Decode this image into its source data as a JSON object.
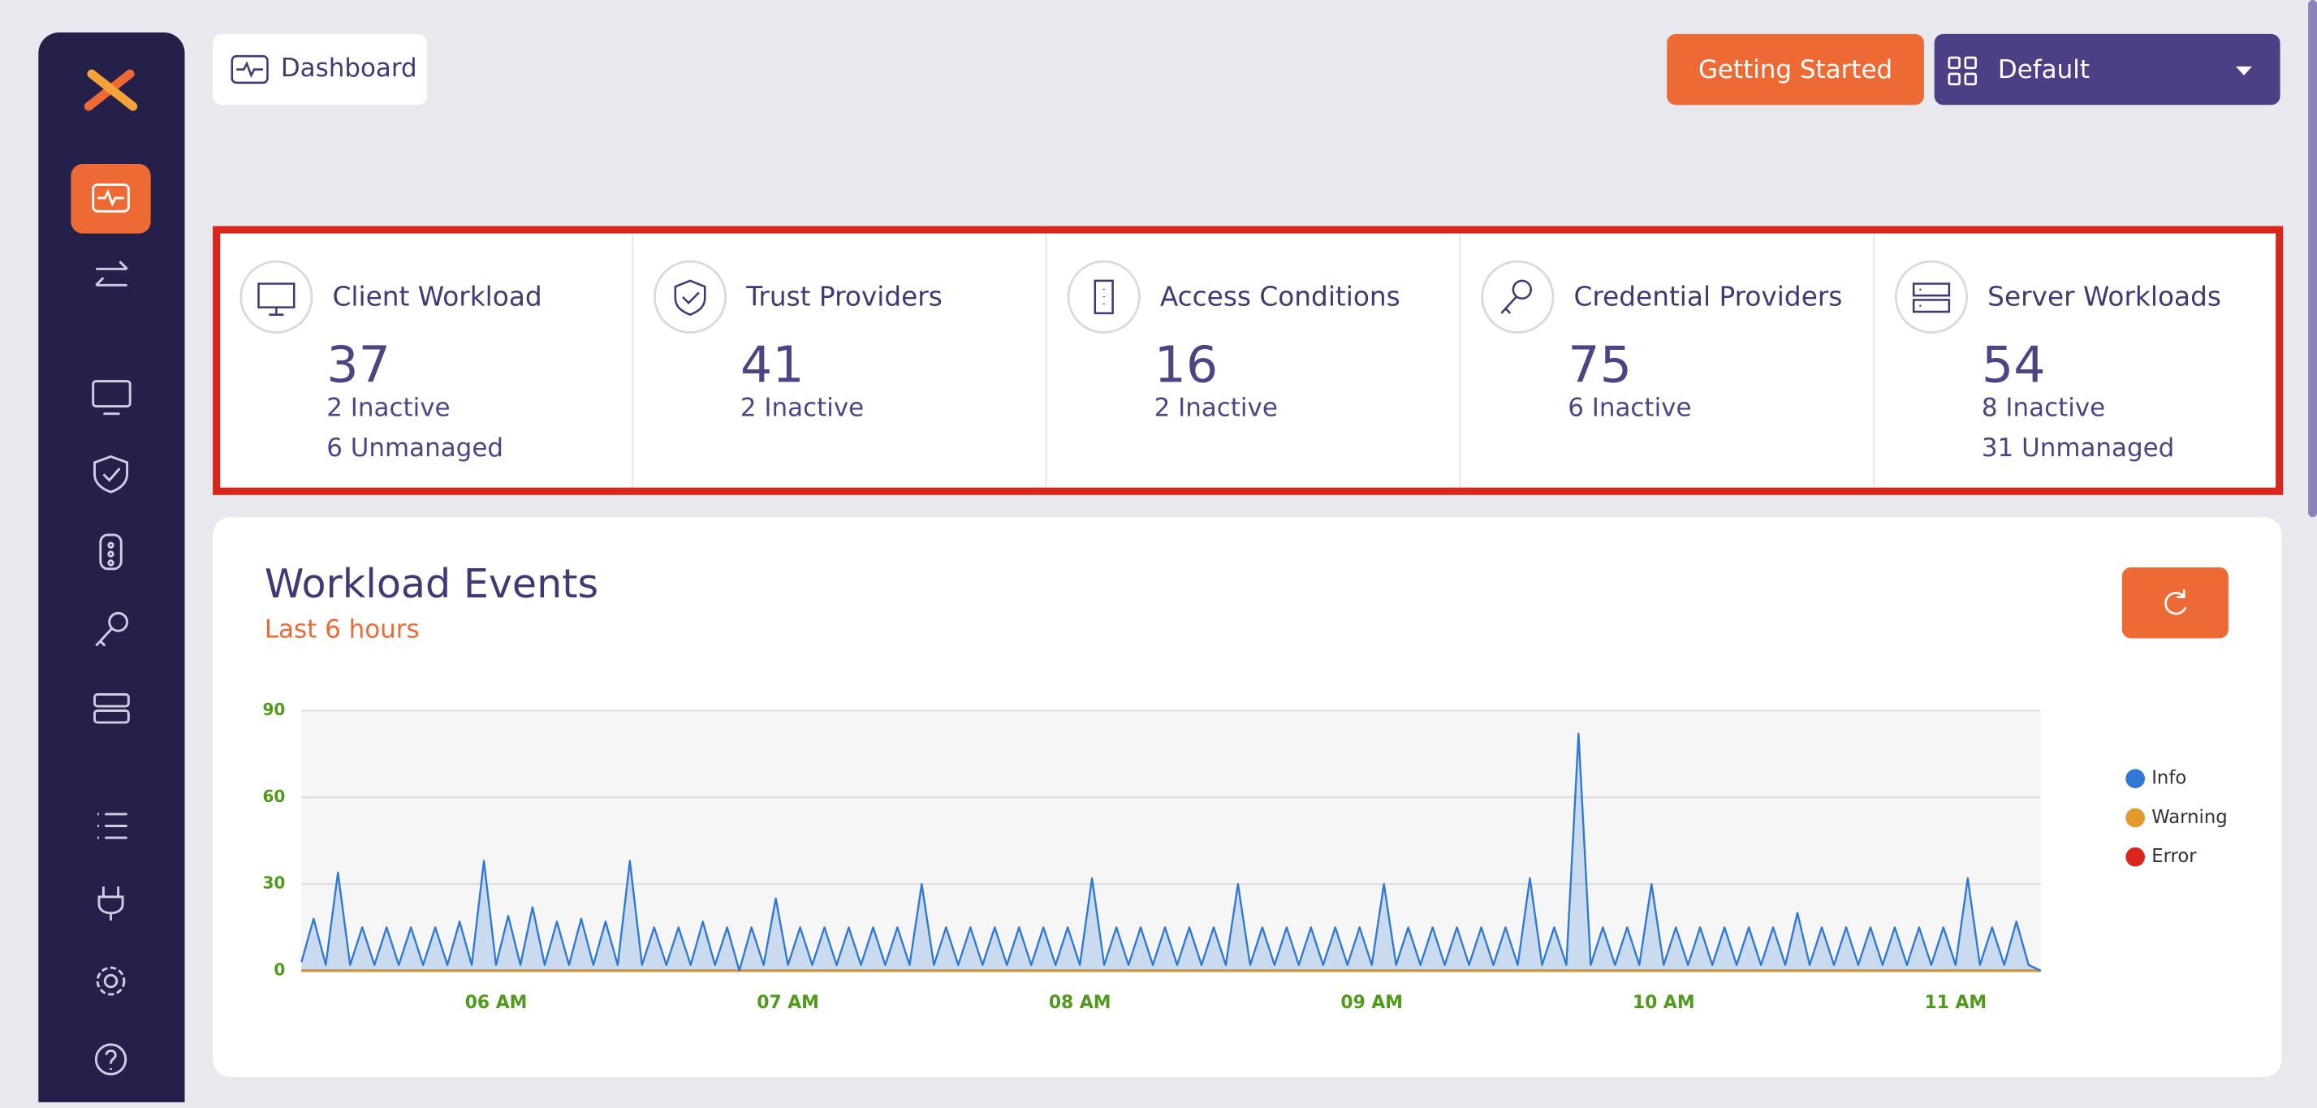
{
  "header": {
    "breadcrumb": "Dashboard",
    "getting_started": "Getting Started",
    "workspace": "Default"
  },
  "summary_cards": [
    {
      "title": "Client Workload",
      "count": 37,
      "details": [
        "2 Inactive",
        "6 Unmanaged"
      ]
    },
    {
      "title": "Trust Providers",
      "count": 41,
      "details": [
        "2 Inactive"
      ]
    },
    {
      "title": "Access Conditions",
      "count": 16,
      "details": [
        "2 Inactive"
      ]
    },
    {
      "title": "Credential Providers",
      "count": 75,
      "details": [
        "6 Inactive"
      ]
    },
    {
      "title": "Server Workloads",
      "count": 54,
      "details": [
        "8 Inactive",
        "31 Unmanaged"
      ]
    }
  ],
  "events_panel": {
    "title": "Workload Events",
    "subtitle": "Last 6 hours"
  },
  "chart_data": {
    "type": "line",
    "categories": [
      null,
      null,
      null,
      null,
      null,
      null,
      null,
      null,
      null,
      null,
      null,
      null,
      null,
      null,
      null,
      null,
      "06 AM",
      null,
      null,
      null,
      null,
      null,
      null,
      null,
      null,
      null,
      null,
      null,
      null,
      null,
      null,
      null,
      null,
      null,
      null,
      null,
      null,
      null,
      null,
      null,
      "07 AM",
      null,
      null,
      null,
      null,
      null,
      null,
      null,
      null,
      null,
      null,
      null,
      null,
      null,
      null,
      null,
      null,
      null,
      null,
      null,
      null,
      null,
      null,
      null,
      "08 AM",
      null,
      null,
      null,
      null,
      null,
      null,
      null,
      null,
      null,
      null,
      null,
      null,
      null,
      null,
      null,
      null,
      null,
      null,
      null,
      null,
      null,
      null,
      null,
      "09 AM",
      null,
      null,
      null,
      null,
      null,
      null,
      null,
      null,
      null,
      null,
      null,
      null,
      null,
      null,
      null,
      null,
      null,
      null,
      null,
      null,
      null,
      null,
      null,
      "10 AM",
      null,
      null,
      null,
      null,
      null,
      null,
      null,
      null,
      null,
      null,
      null,
      null,
      null,
      null,
      null,
      null,
      null,
      null,
      null,
      null,
      null,
      null,
      null,
      "11 AM",
      null,
      null,
      null,
      null,
      null,
      null,
      null
    ],
    "series": [
      {
        "name": "Info",
        "color": "#2f78d4",
        "values": [
          3,
          18,
          2,
          34,
          2,
          15,
          2,
          15,
          2,
          15,
          2,
          15,
          2,
          17,
          2,
          38,
          2,
          19,
          2,
          22,
          2,
          17,
          2,
          18,
          2,
          17,
          2,
          38,
          2,
          15,
          2,
          15,
          2,
          17,
          2,
          15,
          0,
          15,
          2,
          25,
          2,
          15,
          2,
          15,
          2,
          15,
          2,
          15,
          2,
          15,
          2,
          30,
          2,
          15,
          2,
          15,
          2,
          15,
          2,
          15,
          2,
          15,
          2,
          15,
          2,
          32,
          2,
          15,
          2,
          15,
          2,
          15,
          2,
          15,
          2,
          15,
          2,
          30,
          2,
          15,
          2,
          15,
          2,
          15,
          2,
          15,
          2,
          15,
          2,
          30,
          2,
          15,
          2,
          15,
          2,
          15,
          2,
          15,
          2,
          15,
          2,
          32,
          2,
          15,
          2,
          82,
          2,
          15,
          2,
          15,
          2,
          30,
          2,
          15,
          2,
          15,
          2,
          15,
          2,
          15,
          2,
          15,
          2,
          20,
          2,
          15,
          2,
          15,
          2,
          15,
          2,
          15,
          2,
          15,
          2,
          15,
          2,
          32,
          2,
          15,
          2,
          17,
          2,
          0
        ]
      },
      {
        "name": "Warning",
        "color": "#e39a2d",
        "values": [
          0,
          0,
          0,
          0,
          0,
          0,
          0,
          0,
          0,
          0,
          0,
          0,
          0,
          0,
          0,
          0,
          0,
          0,
          0,
          0,
          0,
          0,
          0,
          0,
          0,
          0,
          0,
          0,
          0,
          0,
          0,
          0,
          0,
          0,
          0,
          0,
          0,
          0,
          0,
          0,
          0,
          0,
          0,
          0,
          0,
          0,
          0,
          0,
          0,
          0,
          0,
          0,
          0,
          0,
          0,
          0,
          0,
          0,
          0,
          0,
          0,
          0,
          0,
          0,
          0,
          0,
          0,
          0,
          0,
          0,
          0,
          0,
          0,
          0,
          0,
          0,
          0,
          0,
          0,
          0,
          0,
          0,
          0,
          0,
          0,
          0,
          0,
          0,
          0,
          0,
          0,
          0,
          0,
          0,
          0,
          0,
          0,
          0,
          0,
          0,
          0,
          0,
          0,
          0,
          0,
          0,
          0,
          0,
          0,
          0,
          0,
          0,
          0,
          0,
          0,
          0,
          0,
          0,
          0,
          0,
          0,
          0,
          0,
          0,
          0,
          0,
          0,
          0,
          0,
          0,
          0,
          0,
          0,
          0,
          0,
          0,
          0,
          0,
          0,
          0,
          0,
          0,
          0,
          0
        ]
      },
      {
        "name": "Error",
        "color": "#d9261c",
        "values": [
          0,
          0,
          0,
          0,
          0,
          0,
          0,
          0,
          0,
          0,
          0,
          0,
          0,
          0,
          0,
          0,
          0,
          0,
          0,
          0,
          0,
          0,
          0,
          0,
          0,
          0,
          0,
          0,
          0,
          0,
          0,
          0,
          0,
          0,
          0,
          0,
          0,
          0,
          0,
          0,
          0,
          0,
          0,
          0,
          0,
          0,
          0,
          0,
          0,
          0,
          0,
          0,
          0,
          0,
          0,
          0,
          0,
          0,
          0,
          0,
          0,
          0,
          0,
          0,
          0,
          0,
          0,
          0,
          0,
          0,
          0,
          0,
          0,
          0,
          0,
          0,
          0,
          0,
          0,
          0,
          0,
          0,
          0,
          0,
          0,
          0,
          0,
          0,
          0,
          0,
          0,
          0,
          0,
          0,
          0,
          0,
          0,
          0,
          0,
          0,
          0,
          0,
          0,
          0,
          0,
          0,
          0,
          0,
          0,
          0,
          0,
          0,
          0,
          0,
          0,
          0,
          0,
          0,
          0,
          0,
          0,
          0,
          0,
          0,
          0,
          0,
          0,
          0,
          0,
          0,
          0,
          0,
          0,
          0,
          0,
          0,
          0,
          0,
          0,
          0,
          0,
          0,
          0,
          0
        ]
      }
    ],
    "ylim": [
      0,
      90
    ],
    "yticks": [
      0,
      30,
      60,
      90
    ],
    "grid": true,
    "legend": "right"
  }
}
